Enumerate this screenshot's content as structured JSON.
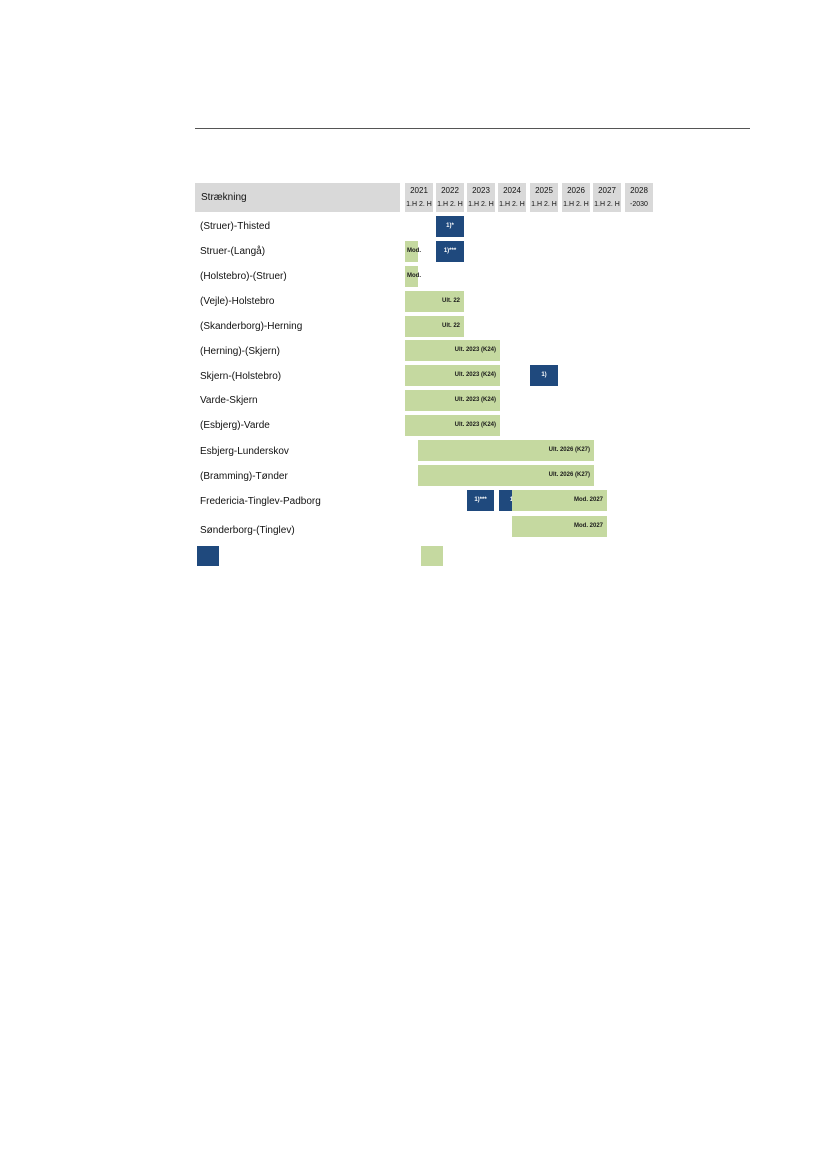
{
  "header": {
    "col_label": "Strækning"
  },
  "years": [
    {
      "year": "2021",
      "halves": "1.H 2. H"
    },
    {
      "year": "2022",
      "halves": "1.H 2. H"
    },
    {
      "year": "2023",
      "halves": "1.H 2. H"
    },
    {
      "year": "2024",
      "halves": "1.H 2. H"
    },
    {
      "year": "2025",
      "halves": "1.H 2. H"
    },
    {
      "year": "2026",
      "halves": "1.H 2. H"
    },
    {
      "year": "2027",
      "halves": "1.H 2. H"
    },
    {
      "year": "2028",
      "halves": "-2030"
    }
  ],
  "rows": [
    {
      "name": "(Struer)-Thisted",
      "bars": [
        {
          "type": "blue",
          "label": "1)*"
        }
      ]
    },
    {
      "name": "Struer-(Langå)",
      "bars": [
        {
          "type": "green",
          "label": "Mod."
        },
        {
          "type": "blue",
          "label": "1)***"
        }
      ]
    },
    {
      "name": "(Holstebro)-(Struer)",
      "bars": [
        {
          "type": "green",
          "label": "Mod."
        }
      ]
    },
    {
      "name": "(Vejle)-Holstebro",
      "bars": [
        {
          "type": "green",
          "label": "Ult. 22"
        }
      ]
    },
    {
      "name": "(Skanderborg)-Herning",
      "bars": [
        {
          "type": "green",
          "label": "Ult. 22"
        }
      ]
    },
    {
      "name": "(Herning)-(Skjern)",
      "bars": [
        {
          "type": "green",
          "label": "Ult. 2023 (K24)"
        }
      ]
    },
    {
      "name": "Skjern-(Holstebro)",
      "bars": [
        {
          "type": "green",
          "label": "Ult. 2023 (K24)"
        },
        {
          "type": "blue",
          "label": "1)"
        }
      ]
    },
    {
      "name": "Varde-Skjern",
      "bars": [
        {
          "type": "green",
          "label": "Ult. 2023 (K24)"
        }
      ]
    },
    {
      "name": "(Esbjerg)-Varde",
      "bars": [
        {
          "type": "green",
          "label": "Ult. 2023 (K24)"
        }
      ]
    },
    {
      "name": "Esbjerg-Lunderskov",
      "bars": [
        {
          "type": "green",
          "label": "Ult. 2026 (K27)"
        }
      ]
    },
    {
      "name": "(Bramming)-Tønder",
      "bars": [
        {
          "type": "green",
          "label": "Ult. 2026 (K27)"
        }
      ]
    },
    {
      "name": "Fredericia-Tinglev-Padborg",
      "bars": [
        {
          "type": "blue",
          "label": "1)***"
        },
        {
          "type": "blue",
          "label": "1)"
        },
        {
          "type": "green",
          "label": "Mod. 2027"
        }
      ]
    },
    {
      "name": "Sønderborg-(Tinglev)",
      "bars": [
        {
          "type": "green",
          "label": "Mod. 2027"
        }
      ]
    }
  ],
  "legend": {
    "blue_color": "#1f497d",
    "green_color": "#c5d9a0"
  }
}
